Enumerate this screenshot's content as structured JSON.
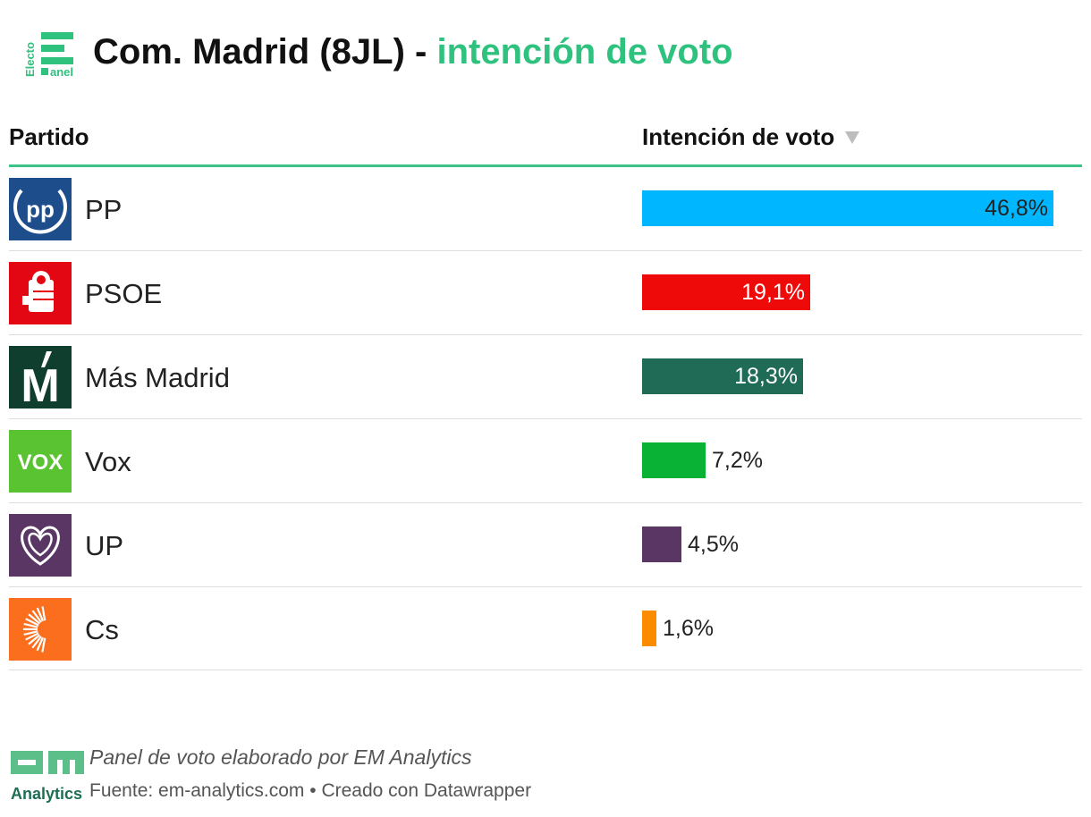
{
  "header": {
    "logo_text_top": "Electo",
    "logo_text_bottom": "anel",
    "title_main": "Com. Madrid (8JL) - ",
    "title_accent": "intención de voto"
  },
  "table": {
    "col_party": "Partido",
    "col_vote": "Intención de voto"
  },
  "chart_data": {
    "type": "bar",
    "title": "Com. Madrid (8JL) - intención de voto",
    "xlabel": "Intención de voto",
    "ylabel": "Partido",
    "xlim": [
      0,
      46.8
    ],
    "categories": [
      "PP",
      "PSOE",
      "Más Madrid",
      "Vox",
      "UP",
      "Cs"
    ],
    "values": [
      46.8,
      19.1,
      18.3,
      7.2,
      4.5,
      1.6
    ],
    "labels": [
      "46,8%",
      "19,1%",
      "18,3%",
      "7,2%",
      "4,5%",
      "1,6%"
    ],
    "colors": [
      "#00b7ff",
      "#ef0a0a",
      "#1f6b55",
      "#09b234",
      "#5a3664",
      "#fb8c00"
    ],
    "logo_colors": [
      "#1e4d8c",
      "#e30613",
      "#0f3d2e",
      "#5ac331",
      "#5a3664",
      "#fa6e1e"
    ],
    "logo_icons": [
      "pp-logo-icon",
      "psoe-logo-icon",
      "mas-madrid-logo-icon",
      "vox-logo-icon",
      "up-logo-icon",
      "cs-logo-icon"
    ],
    "logo_texts": [
      "pp",
      "",
      "M",
      "VOX",
      "",
      ""
    ]
  },
  "footer": {
    "logo_text": "Analytics",
    "note": "Panel de voto elaborado por EM Analytics",
    "source": "Fuente: em-analytics.com • Creado con Datawrapper"
  }
}
